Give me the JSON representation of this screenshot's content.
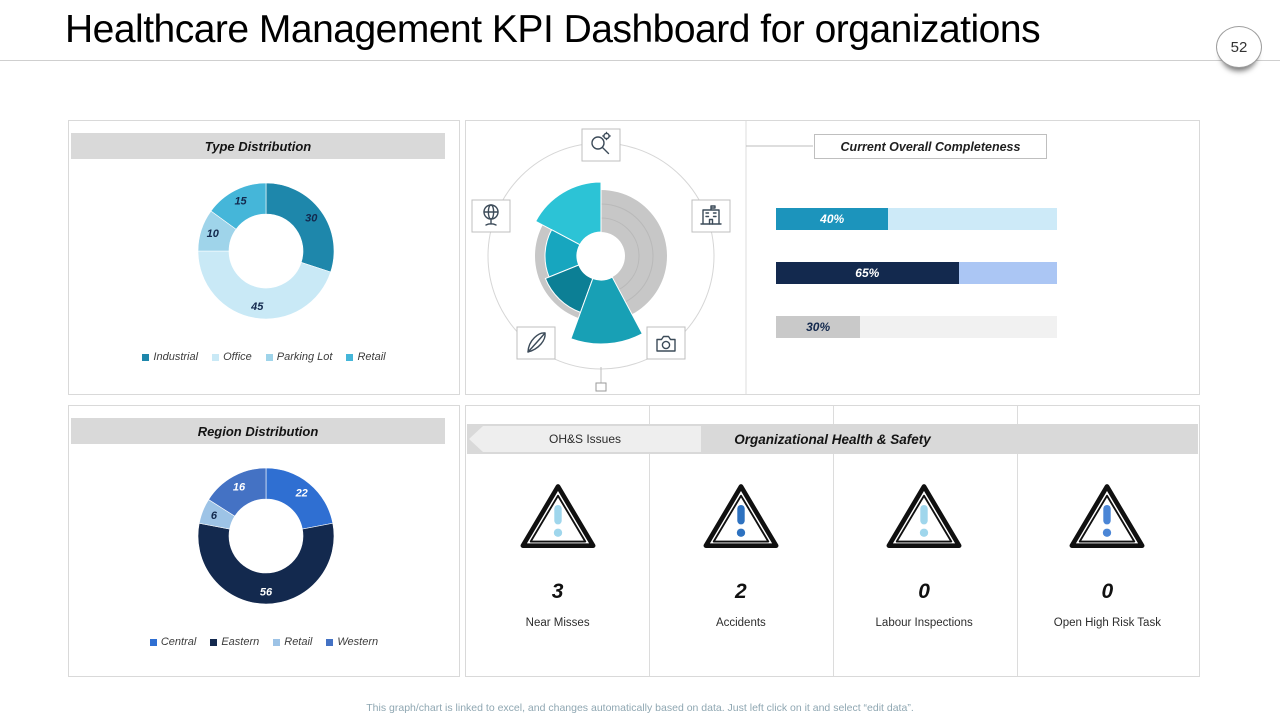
{
  "header": {
    "title": "Healthcare Management KPI Dashboard for organizations",
    "page_number": "52"
  },
  "footer": {
    "note": "This graph/chart is linked to excel, and changes automatically based on data. Just left click on it and select “edit data”."
  },
  "ohs": {
    "banner_label": "OH&S Issues",
    "title": "Organizational Health & Safety",
    "stats": [
      {
        "value": "3",
        "label": "Near Misses",
        "accent": "#9fd6ec"
      },
      {
        "value": "2",
        "label": "Accidents",
        "accent": "#2e72c0"
      },
      {
        "value": "0",
        "label": "Labour Inspections",
        "accent": "#9fd6ec"
      },
      {
        "value": "0",
        "label": "Open High Risk Task",
        "accent": "#4b86d6"
      }
    ]
  },
  "chart_data": [
    {
      "id": "type_distribution",
      "type": "pie",
      "subtype": "donut",
      "title": "Type Distribution",
      "categories": [
        "Industrial",
        "Office",
        "Parking Lot",
        "Retail"
      ],
      "values": [
        30,
        45,
        10,
        15
      ],
      "colors": [
        "#1e87ab",
        "#c9e9f6",
        "#9fd4ea",
        "#45b6d9"
      ],
      "slice_label_colors": [
        "#13294e",
        "#13294e",
        "#13294e",
        "#13294e"
      ],
      "legend_position": "bottom"
    },
    {
      "id": "region_distribution",
      "type": "pie",
      "subtype": "donut",
      "title": "Region Distribution",
      "categories": [
        "Central",
        "Eastern",
        "Retail",
        "Western"
      ],
      "values": [
        22,
        56,
        6,
        16
      ],
      "colors": [
        "#2f6fd2",
        "#13294e",
        "#9dc3e6",
        "#4472c4"
      ],
      "slice_label_colors": [
        "#ffffff",
        "#ffffff",
        "#13294e",
        "#ffffff"
      ],
      "legend_position": "bottom"
    },
    {
      "id": "current_overall_completeness",
      "type": "bar",
      "orientation": "horizontal",
      "title": "Current Overall Completeness",
      "xlim": [
        0,
        100
      ],
      "bars": [
        {
          "label": "40%",
          "value": 40,
          "fill": "#1c94bc",
          "track": "#cdeaf8",
          "text_color": "#ffffff"
        },
        {
          "label": "65%",
          "value": 65,
          "fill": "#13294e",
          "track": "#abc6f4",
          "text_color": "#ffffff"
        },
        {
          "label": "30%",
          "value": 30,
          "fill": "#c9c9c9",
          "track": "#f1f1f1",
          "text_color": "#13294e"
        }
      ]
    },
    {
      "id": "maturity_wheel",
      "type": "pie",
      "subtype": "radial-decorative",
      "title": "",
      "inner_radius": 24,
      "segments": [
        {
          "start": -62,
          "end": 0,
          "outer": 74,
          "color": "#2cc3d6"
        },
        {
          "start": -112,
          "end": -62,
          "outer": 56,
          "color": "#17a6bf"
        },
        {
          "start": -160,
          "end": -112,
          "outer": 60,
          "color": "#0c7f95"
        },
        {
          "start": 152,
          "end": 200,
          "outer": 88,
          "color": "#18a0b5"
        }
      ],
      "icons": [
        "search-icon",
        "globe-icon",
        "building-icon",
        "leaf-icon",
        "camera-icon"
      ]
    }
  ]
}
